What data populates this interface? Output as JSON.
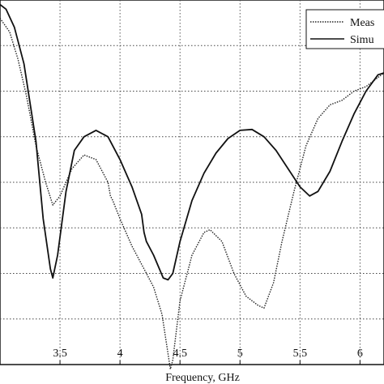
{
  "chart_data": {
    "type": "line",
    "xlabel": "Frequency, GHz",
    "ylabel": "",
    "title": "",
    "xlim": [
      3.0,
      6.2
    ],
    "ylim": [
      -40,
      0
    ],
    "grid": true,
    "legend_position": "top-right",
    "x_ticks": [
      "3.5",
      "4",
      "4.5",
      "5",
      "5.5",
      "6"
    ],
    "y_gridlines": [
      -35,
      -30,
      -25,
      -20,
      -15,
      -10,
      -5
    ],
    "series": [
      {
        "name": "Meas",
        "style": "dotted",
        "color": "#222222",
        "x": [
          3.0,
          3.08,
          3.15,
          3.22,
          3.3,
          3.38,
          3.44,
          3.5,
          3.6,
          3.7,
          3.8,
          3.9,
          3.92,
          3.94,
          4.0,
          4.1,
          4.18,
          4.2,
          4.28,
          4.35,
          4.42,
          4.44,
          4.5,
          4.6,
          4.7,
          4.75,
          4.85,
          4.95,
          5.05,
          5.15,
          5.2,
          5.28,
          5.35,
          5.45,
          5.55,
          5.65,
          5.75,
          5.85,
          5.95,
          6.05,
          6.2
        ],
        "values": [
          -2.0,
          -3.5,
          -6.5,
          -10.5,
          -16.0,
          -20.0,
          -22.5,
          -21.5,
          -18.5,
          -17.0,
          -17.5,
          -20.0,
          -21.5,
          -22.0,
          -24.0,
          -27.0,
          -29.0,
          -29.5,
          -31.5,
          -34.5,
          -40.5,
          -39.5,
          -33.0,
          -28.0,
          -25.5,
          -25.2,
          -26.5,
          -30.0,
          -32.5,
          -33.5,
          -33.8,
          -31.0,
          -26.5,
          -21.0,
          -16.0,
          -13.0,
          -11.5,
          -11.0,
          -10.0,
          -9.5,
          -8.0
        ]
      },
      {
        "name": "Simu",
        "style": "solid",
        "color": "#111111",
        "x": [
          3.0,
          3.05,
          3.12,
          3.2,
          3.3,
          3.36,
          3.42,
          3.44,
          3.48,
          3.55,
          3.62,
          3.7,
          3.8,
          3.9,
          4.0,
          4.1,
          4.18,
          4.2,
          4.22,
          4.28,
          4.36,
          4.4,
          4.44,
          4.5,
          4.6,
          4.7,
          4.8,
          4.9,
          5.0,
          5.1,
          5.2,
          5.3,
          5.4,
          5.5,
          5.58,
          5.65,
          5.75,
          5.85,
          5.95,
          6.05,
          6.15,
          6.2
        ],
        "values": [
          -0.5,
          -1.0,
          -3.0,
          -7.0,
          -15.5,
          -24.0,
          -29.5,
          -30.5,
          -28.0,
          -21.0,
          -16.5,
          -15.0,
          -14.3,
          -15.0,
          -17.5,
          -20.5,
          -23.5,
          -25.5,
          -26.5,
          -28.0,
          -30.5,
          -30.7,
          -30.0,
          -26.5,
          -22.0,
          -19.0,
          -16.8,
          -15.2,
          -14.3,
          -14.2,
          -15.0,
          -16.5,
          -18.5,
          -20.5,
          -21.5,
          -21.0,
          -18.8,
          -15.5,
          -12.5,
          -10.0,
          -8.2,
          -8.0
        ]
      }
    ]
  }
}
